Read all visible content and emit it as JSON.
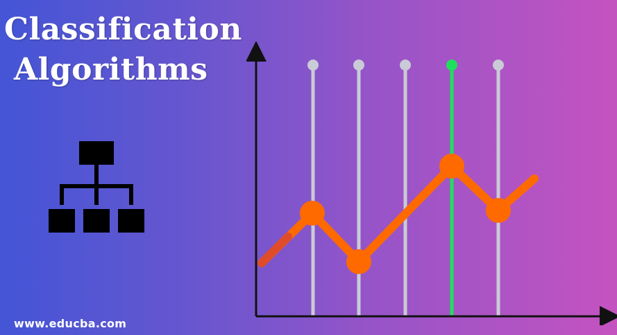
{
  "title": {
    "line1": "Classification",
    "line2": "Algorithms"
  },
  "footer": {
    "url": "www.educba.com"
  },
  "icons": {
    "hierarchy": "hierarchy-icon",
    "chart": "line-chart-illustration"
  },
  "colors": {
    "gradient_start": "#4455d6",
    "gradient_end": "#c453c0",
    "line": "#ff6a00",
    "line_dark": "#e04c2a",
    "bar": "#c9cbd6",
    "bar_highlight": "#1fe05a",
    "axis": "#111111",
    "text": "#ffffff"
  }
}
